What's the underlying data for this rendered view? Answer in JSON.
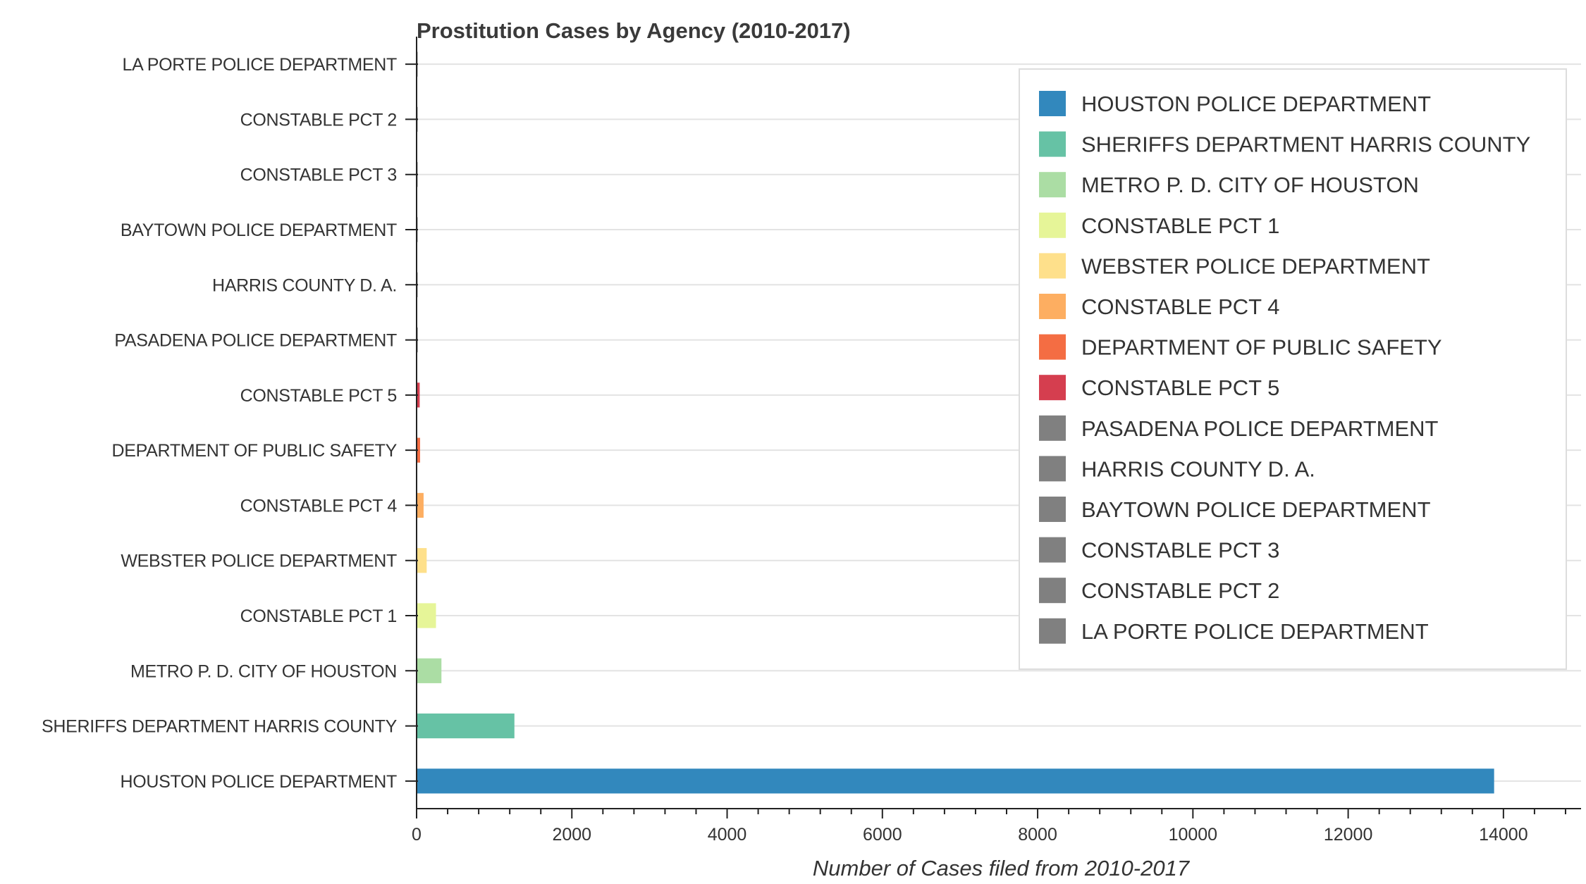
{
  "chart_data": {
    "type": "bar",
    "orientation": "horizontal",
    "title": "Prostitution Cases by Agency (2010-2017)",
    "xlabel": "Number of Cases filed from 2010-2017",
    "ylabel": "",
    "xlim": [
      0,
      15000
    ],
    "xticks": [
      "0",
      "2000",
      "4000",
      "6000",
      "8000",
      "10000",
      "12000",
      "14000"
    ],
    "grid": "horizontal",
    "legend_position": "top-right",
    "categories": [
      "HOUSTON POLICE DEPARTMENT",
      "SHERIFFS DEPARTMENT HARRIS COUNTY",
      "METRO P. D. CITY OF HOUSTON",
      "CONSTABLE   PCT 1",
      "WEBSTER POLICE DEPARTMENT",
      "CONSTABLE   PCT 4",
      "DEPARTMENT OF PUBLIC SAFETY",
      "CONSTABLE   PCT 5",
      "PASADENA POLICE DEPARTMENT",
      "HARRIS COUNTY D. A.",
      "BAYTOWN POLICE DEPARTMENT",
      "CONSTABLE   PCT 3",
      "CONSTABLE   PCT 2",
      "LA PORTE POLICE DEPARTMENT"
    ],
    "values": [
      13880,
      1260,
      320,
      250,
      130,
      90,
      45,
      40,
      15,
      12,
      6,
      4,
      3,
      2
    ],
    "colors": [
      "#3288bd",
      "#66c2a5",
      "#abdda4",
      "#e6f598",
      "#fee08b",
      "#fdae61",
      "#f46d43",
      "#d53e4f",
      "#808080",
      "#808080",
      "#808080",
      "#808080",
      "#808080",
      "#808080"
    ]
  }
}
